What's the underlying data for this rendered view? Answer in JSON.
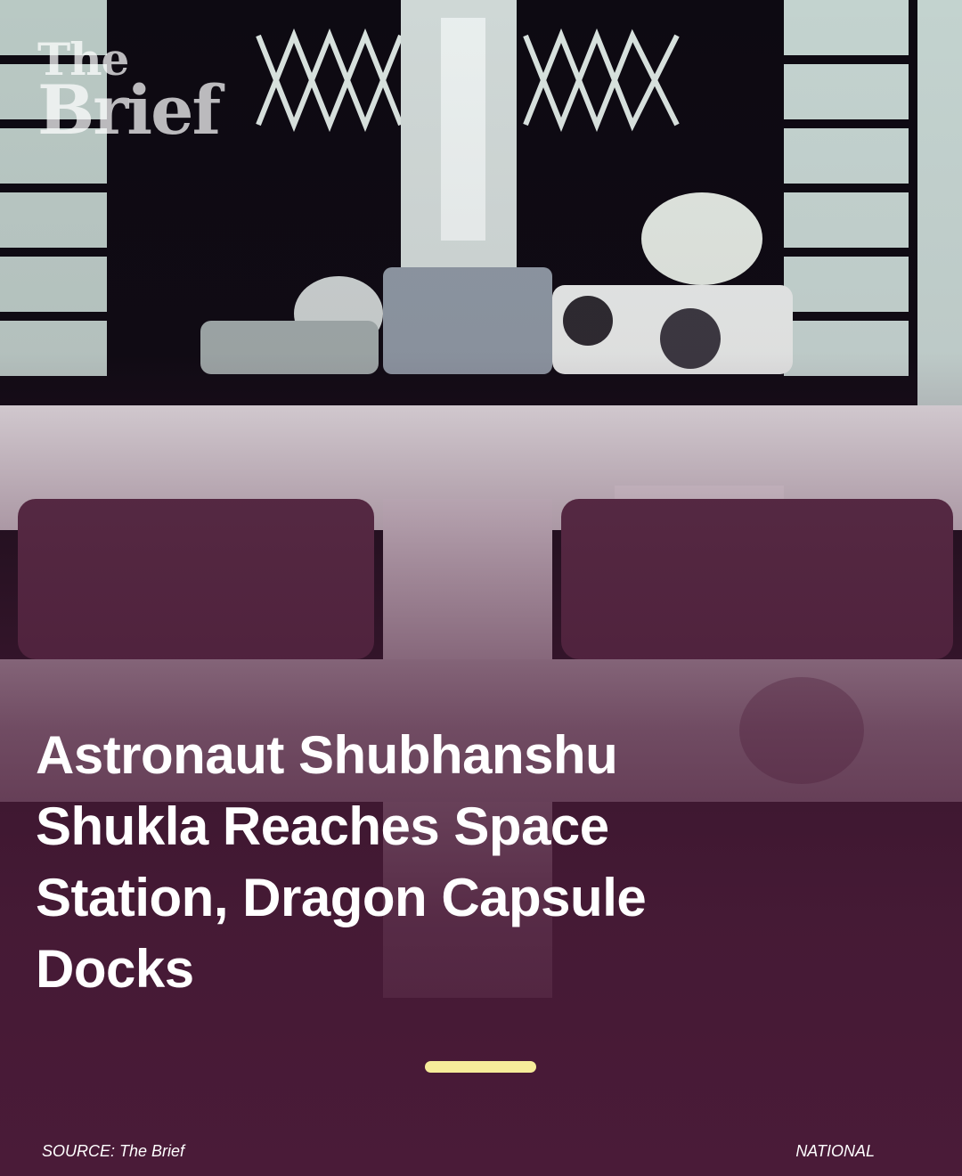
{
  "brand": {
    "line1": "The",
    "line2": "Brief"
  },
  "headline": "Astronaut Shubhanshu Shukla Reaches Space Station, Dragon Capsule Docks",
  "footer": {
    "source": "SOURCE: The Brief",
    "category": "NATIONAL"
  },
  "image": {
    "subject": "space-station-docking-photo"
  },
  "colors": {
    "overlay": "#4a1b38",
    "accent_bar": "#f6ec9a",
    "text": "#ffffff",
    "sky": "#0d0a12"
  }
}
